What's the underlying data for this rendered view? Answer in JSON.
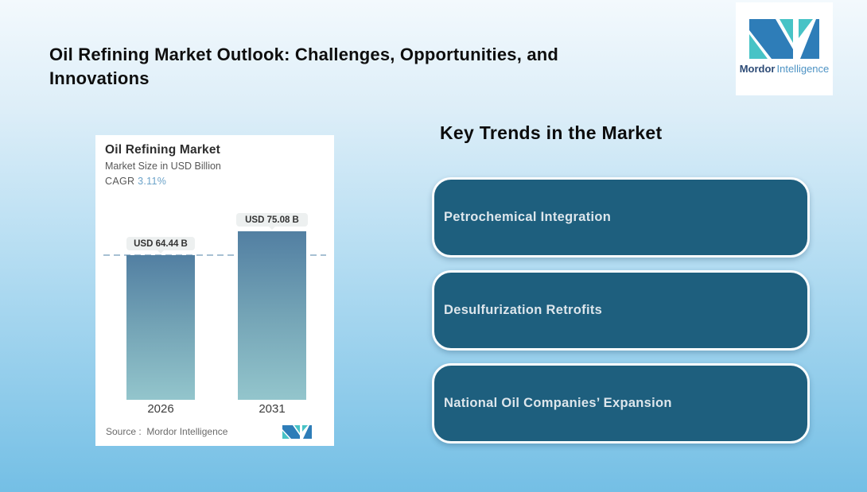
{
  "header": {
    "title_line1": "Oil Refining Market Outlook: Challenges, Opportunities, and",
    "title_line2": "Innovations"
  },
  "brand": {
    "logo_icon": "mordor-intelligence-logo",
    "name_bold": "Mordor",
    "name_light": "Intelligence",
    "logo_blue": "#2e7db8",
    "logo_teal": "#47c3c6"
  },
  "chart_data": {
    "type": "bar",
    "title": "Oil Refining Market",
    "subtitle": "Market Size in USD Billion",
    "cagr_label": "CAGR",
    "cagr_value": "3.11%",
    "categories": [
      "2026",
      "2031"
    ],
    "values": [
      64.44,
      75.08
    ],
    "value_labels": [
      "USD 64.44 B",
      "USD 75.08 B"
    ],
    "unit": "USD Billion",
    "ylim": [
      0,
      90
    ],
    "grid": "off",
    "legend": "none",
    "reference_line_value": 64.44,
    "reference_line_style": "dashed",
    "source": "Source :  Mordor Intelligence"
  },
  "key_trends": {
    "heading": "Key Trends in the Market",
    "items": [
      {
        "label": "Petrochemical Integration"
      },
      {
        "label": "Desulfurization Retrofits"
      },
      {
        "label": "National Oil Companies’ Expansion"
      }
    ]
  },
  "colors": {
    "background_top": "#f3f9fd",
    "background_bottom": "#74bfe5",
    "trend_card_fill": "#1e5f7e",
    "trend_card_border": "#fbfdfe",
    "trend_card_text": "#dde6ec",
    "bar_gradient_top": "#527fa2",
    "bar_gradient_bottom": "#93c5cc",
    "dashed_line": "#a7c0d3",
    "value_badge_bg": "#edf0f0",
    "cagr_value_text": "#6ca3c9"
  }
}
